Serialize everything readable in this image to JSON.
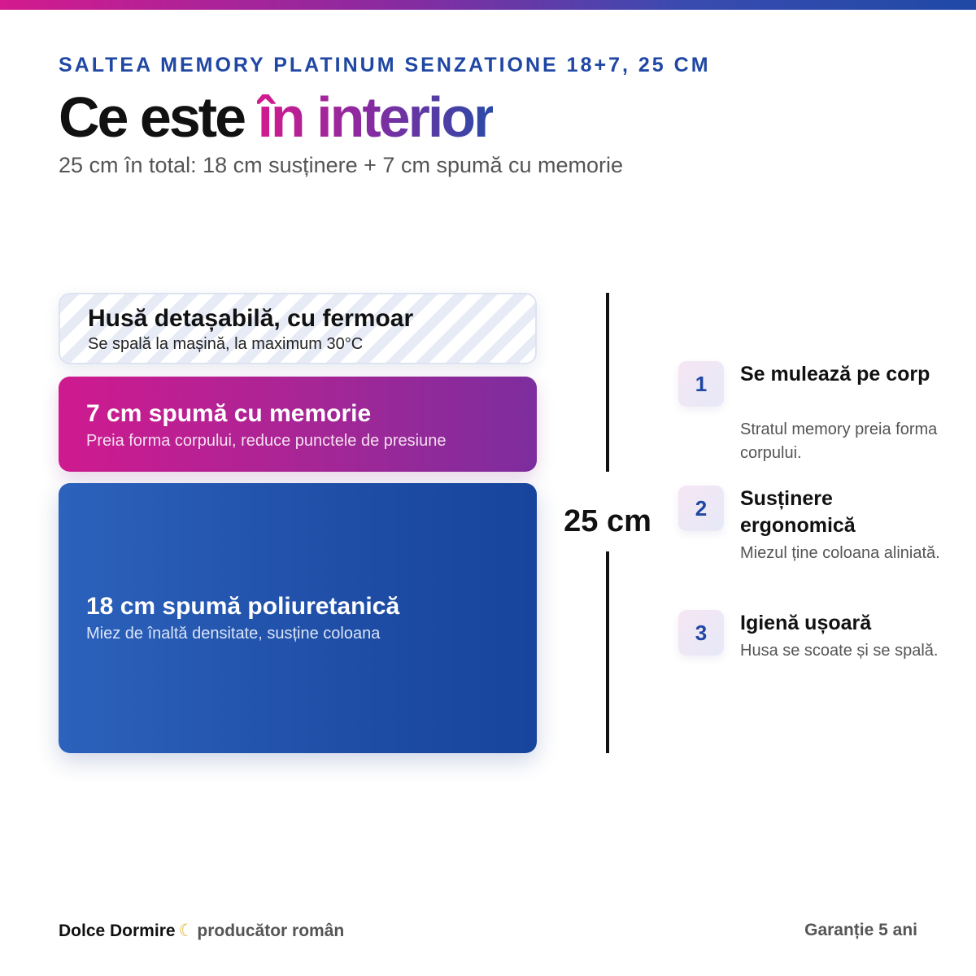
{
  "header": {
    "eyebrow": "SALTEA MEMORY PLATINUM SENZATIONE 18+7, 25 CM",
    "title_start": "Ce este ",
    "title_accent": "în interior",
    "subtitle": "25 cm în total: 18 cm susținere + 7 cm spumă cu memorie"
  },
  "layers": [
    {
      "name": "Husă detașabilă, cu fermoar",
      "desc": "Se spală la mașină, la maximum 30°C"
    },
    {
      "name": "7 cm spumă cu memorie",
      "desc": "Preia forma corpului, reduce punctele de presiune"
    },
    {
      "name": "18 cm spumă poliuretanică",
      "desc": "Miez de înaltă densitate, susține coloana"
    }
  ],
  "dimension": {
    "label": "25 cm"
  },
  "features": [
    {
      "number": "1",
      "title": "Se mulează pe corp",
      "desc": "Stratul memory preia forma corpului."
    },
    {
      "number": "2",
      "title": "Susținere ergonomică",
      "desc": "Miezul ține coloana aliniată."
    },
    {
      "number": "3",
      "title": "Igienă ușoară",
      "desc": "Husa se scoate și se spală."
    }
  ],
  "footer": {
    "brand": "Dolce Dormire",
    "moon_icon": "☾",
    "tagline": "producător român",
    "warranty": "Garanție 5 ani"
  },
  "colors": {
    "brand_blue": "#1f47a3",
    "brand_magenta": "#cf1a8f",
    "brand_purple": "#7d2d9e"
  }
}
